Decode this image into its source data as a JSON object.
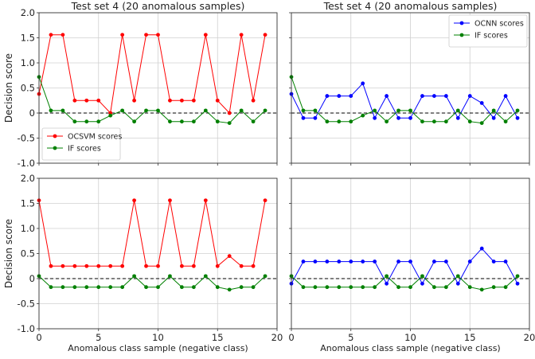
{
  "figure": {
    "colors": {
      "OCSVM": "#ff0000",
      "OCNN": "#0000ff",
      "IF": "#008000"
    }
  },
  "chart_data": [
    {
      "type": "line",
      "title": "Test set 4 (20 anomalous samples)",
      "xlabel": "",
      "ylabel": "Decision score",
      "xlim": [
        0,
        20
      ],
      "ylim": [
        -1.0,
        2.0
      ],
      "x_ticks": [
        "0",
        "5",
        "10",
        "15",
        "20"
      ],
      "y_ticks": [
        "-1.0",
        "-0.5",
        "0",
        "0.5",
        "1.0",
        "1.5",
        "2.0"
      ],
      "show_x_tick_labels": false,
      "show_y_tick_labels": true,
      "grid": true,
      "zero_line": "dashed",
      "legend": {
        "placement": "lower-left"
      },
      "x": [
        0,
        1,
        2,
        3,
        4,
        5,
        6,
        7,
        8,
        9,
        10,
        11,
        12,
        13,
        14,
        15,
        16,
        17,
        18,
        19
      ],
      "series": [
        {
          "name": "OCSVM scores",
          "color": "#ff0000",
          "values": [
            0.38,
            1.56,
            1.56,
            0.25,
            0.25,
            0.25,
            0.0,
            1.56,
            0.25,
            1.56,
            1.56,
            0.25,
            0.25,
            0.25,
            1.56,
            0.25,
            0.0,
            1.56,
            0.25,
            1.56
          ]
        },
        {
          "name": "IF scores",
          "color": "#008000",
          "values": [
            0.72,
            0.05,
            0.05,
            -0.17,
            -0.17,
            -0.17,
            -0.05,
            0.05,
            -0.17,
            0.05,
            0.05,
            -0.17,
            -0.17,
            -0.17,
            0.05,
            -0.17,
            -0.2,
            0.05,
            -0.17,
            0.05
          ]
        }
      ]
    },
    {
      "type": "line",
      "title": "Test set 4 (20 anomalous samples)",
      "xlabel": "",
      "ylabel": "",
      "xlim": [
        0,
        20
      ],
      "ylim": [
        -1.0,
        2.0
      ],
      "x_ticks": [
        "0",
        "5",
        "10",
        "15",
        "20"
      ],
      "y_ticks": [
        "-1.0",
        "-0.5",
        "0",
        "0.5",
        "1.0",
        "1.5",
        "2.0"
      ],
      "show_x_tick_labels": false,
      "show_y_tick_labels": false,
      "grid": true,
      "zero_line": "dashed",
      "legend": {
        "placement": "top-right"
      },
      "x": [
        0,
        1,
        2,
        3,
        4,
        5,
        6,
        7,
        8,
        9,
        10,
        11,
        12,
        13,
        14,
        15,
        16,
        17,
        18,
        19
      ],
      "series": [
        {
          "name": "OCNN scores",
          "color": "#0000ff",
          "values": [
            0.38,
            -0.1,
            -0.1,
            0.34,
            0.34,
            0.34,
            0.59,
            -0.1,
            0.34,
            -0.1,
            -0.1,
            0.34,
            0.34,
            0.34,
            -0.1,
            0.34,
            0.2,
            -0.1,
            0.34,
            -0.1
          ]
        },
        {
          "name": "IF scores",
          "color": "#008000",
          "values": [
            0.72,
            0.05,
            0.05,
            -0.17,
            -0.17,
            -0.17,
            -0.05,
            0.05,
            -0.17,
            0.05,
            0.05,
            -0.17,
            -0.17,
            -0.17,
            0.05,
            -0.17,
            -0.2,
            0.05,
            -0.17,
            0.05
          ]
        }
      ]
    },
    {
      "type": "line",
      "title": "",
      "xlabel": "Anomalous class sample (negative class)",
      "ylabel": "Decision score",
      "xlim": [
        0,
        20
      ],
      "ylim": [
        -1.0,
        2.0
      ],
      "x_ticks": [
        "0",
        "5",
        "10",
        "15",
        "20"
      ],
      "y_ticks": [
        "-1.0",
        "-0.5",
        "0",
        "0.5",
        "1.0",
        "1.5",
        "2.0"
      ],
      "show_x_tick_labels": true,
      "show_y_tick_labels": true,
      "grid": true,
      "zero_line": "dashed",
      "legend": null,
      "x": [
        0,
        1,
        2,
        3,
        4,
        5,
        6,
        7,
        8,
        9,
        10,
        11,
        12,
        13,
        14,
        15,
        16,
        17,
        18,
        19
      ],
      "series": [
        {
          "color": "#ff0000",
          "values": [
            1.56,
            0.25,
            0.25,
            0.25,
            0.25,
            0.25,
            0.25,
            0.25,
            1.56,
            0.25,
            0.25,
            1.56,
            0.25,
            0.25,
            1.56,
            0.25,
            0.45,
            0.25,
            0.25,
            1.56
          ]
        },
        {
          "color": "#008000",
          "values": [
            0.05,
            -0.17,
            -0.17,
            -0.17,
            -0.17,
            -0.17,
            -0.17,
            -0.17,
            0.05,
            -0.17,
            -0.17,
            0.05,
            -0.17,
            -0.17,
            0.05,
            -0.17,
            -0.22,
            -0.17,
            -0.17,
            0.05
          ]
        }
      ]
    },
    {
      "type": "line",
      "title": "",
      "xlabel": "Anomalous class sample (negative class)",
      "ylabel": "",
      "xlim": [
        0,
        20
      ],
      "ylim": [
        -1.0,
        2.0
      ],
      "x_ticks": [
        "0",
        "5",
        "10",
        "15",
        "20"
      ],
      "y_ticks": [
        "-1.0",
        "-0.5",
        "0",
        "0.5",
        "1.0",
        "1.5",
        "2.0"
      ],
      "show_x_tick_labels": true,
      "show_y_tick_labels": false,
      "grid": true,
      "zero_line": "dashed",
      "legend": null,
      "x": [
        0,
        1,
        2,
        3,
        4,
        5,
        6,
        7,
        8,
        9,
        10,
        11,
        12,
        13,
        14,
        15,
        16,
        17,
        18,
        19
      ],
      "series": [
        {
          "color": "#0000ff",
          "values": [
            -0.1,
            0.34,
            0.34,
            0.34,
            0.34,
            0.34,
            0.34,
            0.34,
            -0.1,
            0.34,
            0.34,
            -0.1,
            0.34,
            0.34,
            -0.1,
            0.34,
            0.6,
            0.34,
            0.34,
            -0.1
          ]
        },
        {
          "color": "#008000",
          "values": [
            0.05,
            -0.17,
            -0.17,
            -0.17,
            -0.17,
            -0.17,
            -0.17,
            -0.17,
            0.05,
            -0.17,
            -0.17,
            0.05,
            -0.17,
            -0.17,
            0.05,
            -0.17,
            -0.22,
            -0.17,
            -0.17,
            0.05
          ]
        }
      ]
    }
  ]
}
